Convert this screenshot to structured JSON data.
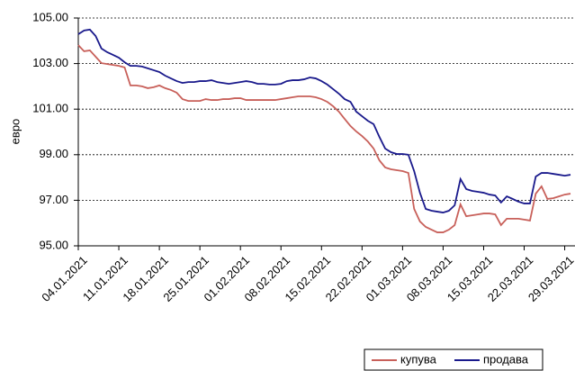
{
  "chart_data": {
    "type": "line",
    "y_label": "евро",
    "categories": [
      "04.01.2021",
      null,
      null,
      null,
      null,
      null,
      null,
      "11.01.2021",
      null,
      null,
      null,
      null,
      null,
      null,
      "18.01.2021",
      null,
      null,
      null,
      null,
      null,
      null,
      "25.01.2021",
      null,
      null,
      null,
      null,
      null,
      null,
      "01.02.2021",
      null,
      null,
      null,
      null,
      null,
      null,
      "08.02.2021",
      null,
      null,
      null,
      null,
      null,
      null,
      "15.02.2021",
      null,
      null,
      null,
      null,
      null,
      null,
      "22.02.2021",
      null,
      null,
      null,
      null,
      null,
      null,
      "01.03.2021",
      null,
      null,
      null,
      null,
      null,
      null,
      "08.03.2021",
      null,
      null,
      null,
      null,
      null,
      null,
      "15.03.2021",
      null,
      null,
      null,
      null,
      null,
      null,
      "22.03.2021",
      null,
      null,
      null,
      null,
      null,
      null,
      "29.03.2021",
      null
    ],
    "series": [
      {
        "name": "купува",
        "color": "#c8605a",
        "values": [
          103.81,
          103.54,
          103.58,
          103.3,
          103.02,
          102.98,
          102.94,
          102.9,
          102.83,
          102.04,
          102.04,
          102.0,
          101.92,
          101.96,
          102.04,
          101.92,
          101.84,
          101.72,
          101.44,
          101.36,
          101.36,
          101.36,
          101.44,
          101.4,
          101.4,
          101.44,
          101.44,
          101.48,
          101.48,
          101.4,
          101.4,
          101.4,
          101.4,
          101.4,
          101.4,
          101.44,
          101.48,
          101.52,
          101.56,
          101.56,
          101.56,
          101.52,
          101.44,
          101.32,
          101.13,
          100.89,
          100.57,
          100.26,
          100.02,
          99.82,
          99.58,
          99.27,
          98.75,
          98.44,
          98.36,
          98.32,
          98.28,
          98.2,
          96.62,
          96.07,
          95.83,
          95.71,
          95.59,
          95.59,
          95.71,
          95.91,
          96.82,
          96.3,
          96.34,
          96.38,
          96.42,
          96.42,
          96.38,
          95.91,
          96.19,
          96.19,
          96.19,
          96.15,
          96.11,
          97.29,
          97.61,
          97.06,
          97.09,
          97.17,
          97.25,
          97.29
        ]
      },
      {
        "name": "продава",
        "color": "#1a1a8c",
        "values": [
          104.29,
          104.45,
          104.49,
          104.21,
          103.66,
          103.5,
          103.38,
          103.26,
          103.06,
          102.9,
          102.9,
          102.87,
          102.79,
          102.71,
          102.63,
          102.47,
          102.35,
          102.23,
          102.15,
          102.19,
          102.19,
          102.23,
          102.23,
          102.27,
          102.19,
          102.15,
          102.11,
          102.15,
          102.19,
          102.23,
          102.19,
          102.11,
          102.11,
          102.08,
          102.08,
          102.11,
          102.23,
          102.27,
          102.27,
          102.31,
          102.39,
          102.35,
          102.23,
          102.08,
          101.88,
          101.68,
          101.44,
          101.32,
          100.89,
          100.69,
          100.49,
          100.34,
          99.78,
          99.27,
          99.11,
          99.03,
          99.03,
          99.0,
          98.28,
          97.33,
          96.62,
          96.54,
          96.5,
          96.46,
          96.54,
          96.78,
          97.93,
          97.49,
          97.41,
          97.37,
          97.33,
          97.25,
          97.21,
          96.9,
          97.17,
          97.06,
          96.94,
          96.86,
          96.86,
          98.04,
          98.2,
          98.2,
          98.16,
          98.12,
          98.08,
          98.12
        ]
      }
    ],
    "ylim": [
      95,
      105
    ],
    "yticks": [
      {
        "value": 95,
        "label": "95.00"
      },
      {
        "value": 97,
        "label": "97.00"
      },
      {
        "value": 99,
        "label": "99.00"
      },
      {
        "value": 101,
        "label": "101.00"
      },
      {
        "value": 103,
        "label": "103.00"
      },
      {
        "value": 105,
        "label": "105.00"
      }
    ],
    "grid": true,
    "legend_position": "bottom-right"
  }
}
